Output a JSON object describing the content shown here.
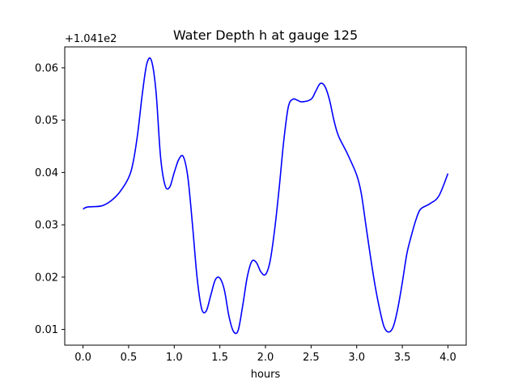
{
  "chart_data": {
    "type": "line",
    "title": "Water Depth h at gauge 125",
    "xlabel": "hours",
    "ylabel": "",
    "y_offset_label": "+1.041e2",
    "xlim": [
      -0.2,
      4.2
    ],
    "ylim": [
      0.007,
      0.064
    ],
    "x_ticks": [
      0.0,
      0.5,
      1.0,
      1.5,
      2.0,
      2.5,
      3.0,
      3.5,
      4.0
    ],
    "x_tick_labels": [
      "0.0",
      "0.5",
      "1.0",
      "1.5",
      "2.0",
      "2.5",
      "3.0",
      "3.5",
      "4.0"
    ],
    "y_ticks": [
      0.01,
      0.02,
      0.03,
      0.04,
      0.05,
      0.06
    ],
    "y_tick_labels": [
      "0.01",
      "0.02",
      "0.03",
      "0.04",
      "0.05",
      "0.06"
    ],
    "grid": false,
    "series": [
      {
        "color": "#0000ff",
        "x": [
          0.0,
          0.05,
          0.2,
          0.3,
          0.4,
          0.5,
          0.55,
          0.6,
          0.65,
          0.7,
          0.75,
          0.8,
          0.85,
          0.9,
          0.95,
          1.0,
          1.05,
          1.1,
          1.15,
          1.2,
          1.25,
          1.3,
          1.35,
          1.4,
          1.45,
          1.5,
          1.55,
          1.6,
          1.65,
          1.7,
          1.75,
          1.8,
          1.85,
          1.9,
          1.95,
          2.0,
          2.05,
          2.1,
          2.15,
          2.2,
          2.25,
          2.3,
          2.35,
          2.4,
          2.5,
          2.55,
          2.6,
          2.65,
          2.7,
          2.75,
          2.8,
          2.9,
          3.0,
          3.05,
          3.1,
          3.15,
          3.2,
          3.25,
          3.3,
          3.35,
          3.4,
          3.45,
          3.5,
          3.55,
          3.6,
          3.65,
          3.7,
          3.8,
          3.9,
          4.0
        ],
        "y": [
          0.033,
          0.0334,
          0.0336,
          0.0345,
          0.0362,
          0.039,
          0.042,
          0.0475,
          0.055,
          0.0608,
          0.0614,
          0.0555,
          0.043,
          0.0375,
          0.0372,
          0.04,
          0.0425,
          0.043,
          0.039,
          0.03,
          0.02,
          0.014,
          0.0135,
          0.0165,
          0.0195,
          0.0198,
          0.0175,
          0.0125,
          0.0096,
          0.0098,
          0.0145,
          0.02,
          0.023,
          0.0228,
          0.021,
          0.0205,
          0.023,
          0.029,
          0.037,
          0.046,
          0.0525,
          0.054,
          0.0538,
          0.0535,
          0.054,
          0.0555,
          0.057,
          0.0565,
          0.054,
          0.05,
          0.047,
          0.0435,
          0.0395,
          0.036,
          0.03,
          0.024,
          0.0185,
          0.014,
          0.0105,
          0.0095,
          0.0105,
          0.014,
          0.019,
          0.0245,
          0.028,
          0.031,
          0.033,
          0.034,
          0.0355,
          0.0398
        ]
      }
    ]
  }
}
